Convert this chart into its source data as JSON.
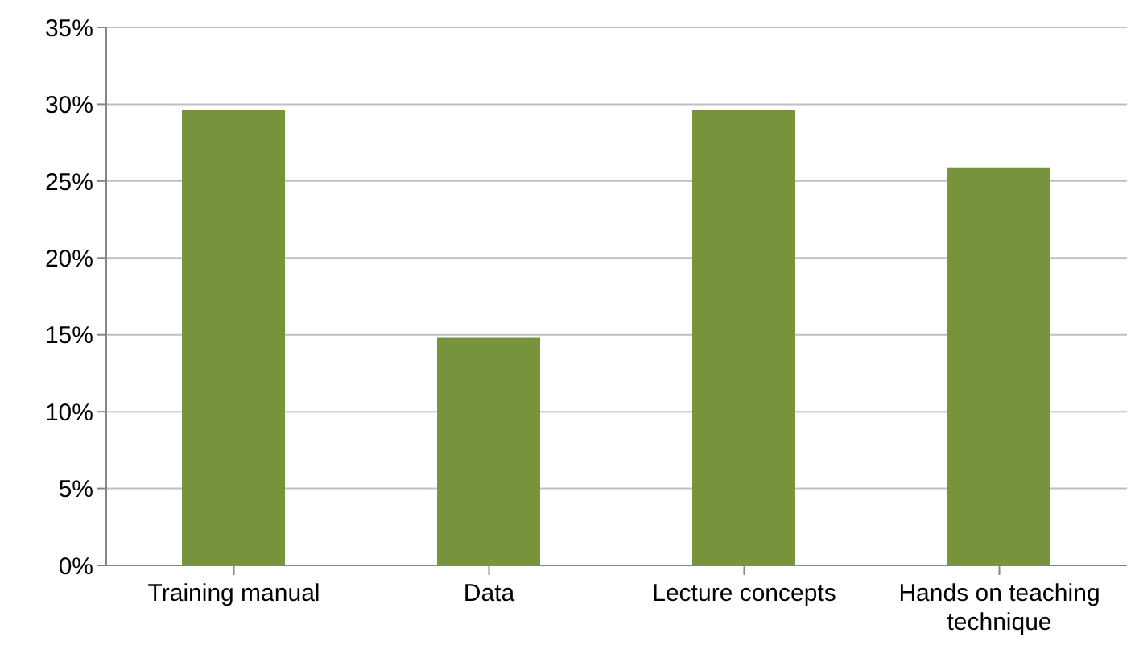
{
  "chart_data": {
    "type": "bar",
    "categories": [
      "Training manual",
      "Data",
      "Lecture concepts",
      "Hands on teaching technique"
    ],
    "values": [
      29.6,
      14.8,
      29.6,
      25.9
    ],
    "color": "#77933c",
    "ylim": [
      0,
      35
    ],
    "yticks": [
      {
        "value": 0,
        "label": "0%"
      },
      {
        "value": 5,
        "label": "5%"
      },
      {
        "value": 10,
        "label": "10%"
      },
      {
        "value": 15,
        "label": "15%"
      },
      {
        "value": 20,
        "label": "20%"
      },
      {
        "value": 25,
        "label": "25%"
      },
      {
        "value": 30,
        "label": "30%"
      },
      {
        "value": 35,
        "label": "35%"
      }
    ],
    "grid": "y",
    "legend": false
  }
}
